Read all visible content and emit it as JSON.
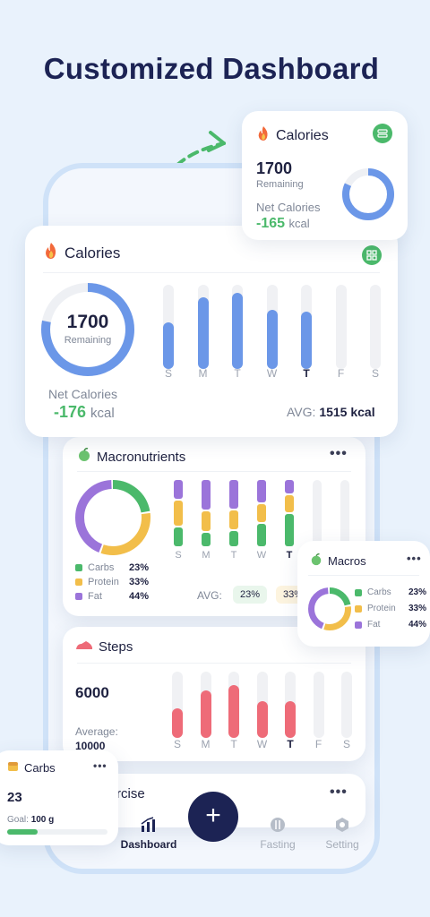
{
  "headline": "Customized Dashboard",
  "colors": {
    "blue": "#6B97E8",
    "green": "#4BB96B",
    "yellow": "#F2BE4A",
    "purple": "#9B74DA",
    "red": "#EE6B78",
    "navy": "#1C2354"
  },
  "calories_main": {
    "title": "Calories",
    "emoji_icon": "fire-icon",
    "value": "1700",
    "remaining_label": "Remaining",
    "net_label": "Net Calories",
    "net_value": "-176",
    "unit": "kcal",
    "avg_label": "AVG:",
    "avg_value": "1515 kcal",
    "ring_fraction": 0.78,
    "days": [
      "S",
      "M",
      "T",
      "W",
      "T",
      "F",
      "S"
    ],
    "today_index": 4,
    "bars": [
      0.55,
      0.85,
      0.9,
      0.7,
      0.68,
      0,
      0
    ]
  },
  "calories_mini": {
    "title": "Calories",
    "value": "1700",
    "remaining_label": "Remaining",
    "net_label": "Net Calories",
    "net_value": "-165",
    "unit": "kcal",
    "ring_fraction": 0.82
  },
  "macros_main": {
    "title": "Macronutrients",
    "emoji_icon": "apple-icon",
    "more": "•••",
    "legend": [
      {
        "name": "Carbs",
        "value": "23%"
      },
      {
        "name": "Protein",
        "value": "33%"
      },
      {
        "name": "Fat",
        "value": "44%"
      }
    ],
    "donut": [
      0.23,
      0.33,
      0.44
    ],
    "days": [
      "S",
      "M",
      "T",
      "W",
      "T"
    ],
    "today_index": 4,
    "stacks": [
      [
        0.3,
        0.4,
        0.3
      ],
      [
        0.5,
        0.35,
        0.25
      ],
      [
        0.45,
        0.3,
        0.25
      ],
      [
        0.35,
        0.3,
        0.35
      ],
      [
        0.2,
        0.25,
        0.45
      ]
    ],
    "avg_label": "AVG:",
    "avg_values": [
      "23%",
      "33%"
    ]
  },
  "macros_mini": {
    "title": "Macros",
    "more": "•••",
    "legend": [
      {
        "name": "Carbs",
        "value": "23%"
      },
      {
        "name": "Protein",
        "value": "33%"
      },
      {
        "name": "Fat",
        "value": "44%"
      }
    ],
    "donut": [
      0.23,
      0.33,
      0.44
    ]
  },
  "steps": {
    "title": "Steps",
    "emoji_icon": "shoe-icon",
    "value": "6000",
    "average_label": "Average:",
    "average_value": "10000",
    "days": [
      "S",
      "M",
      "T",
      "W",
      "T",
      "F",
      "S"
    ],
    "today_index": 4,
    "bars": [
      0.45,
      0.72,
      0.8,
      0.55,
      0.55,
      0,
      0
    ]
  },
  "carbs": {
    "title": "Carbs",
    "emoji_icon": "bread-icon",
    "more": "•••",
    "value": "23",
    "goal_label": "Goal:",
    "goal_value": "100 g",
    "progress": 0.3
  },
  "exercise": {
    "title": "rcise",
    "more": "•••"
  },
  "tabs": {
    "dashboard": "Dashboard",
    "fasting": "Fasting",
    "setting": "Setting",
    "add": "+"
  }
}
